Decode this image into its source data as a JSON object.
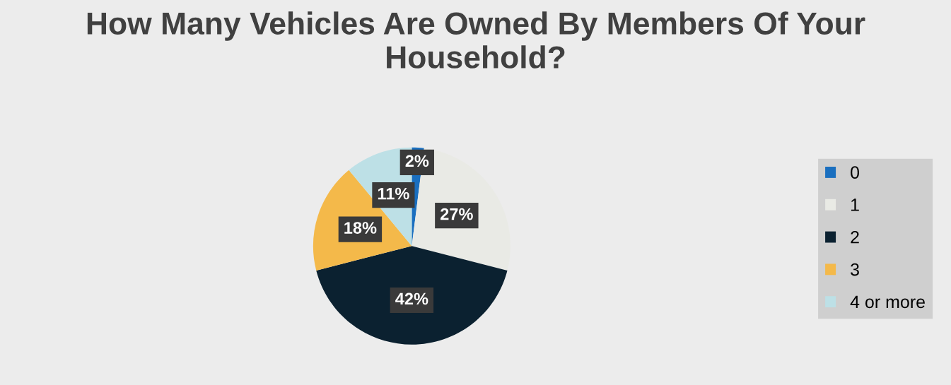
{
  "chart_data": {
    "type": "pie",
    "title": "How Many Vehicles Are Owned By Members Of Your Household?",
    "categories": [
      "0",
      "1",
      "2",
      "3",
      "4 or more"
    ],
    "values": [
      2,
      27,
      42,
      18,
      11
    ],
    "colors": [
      "#1a6fbf",
      "#e9eae5",
      "#0b2130",
      "#f4b94a",
      "#bde0e6"
    ],
    "value_labels": [
      "2%",
      "27%",
      "42%",
      "18%",
      "11%"
    ],
    "legend": "right"
  }
}
